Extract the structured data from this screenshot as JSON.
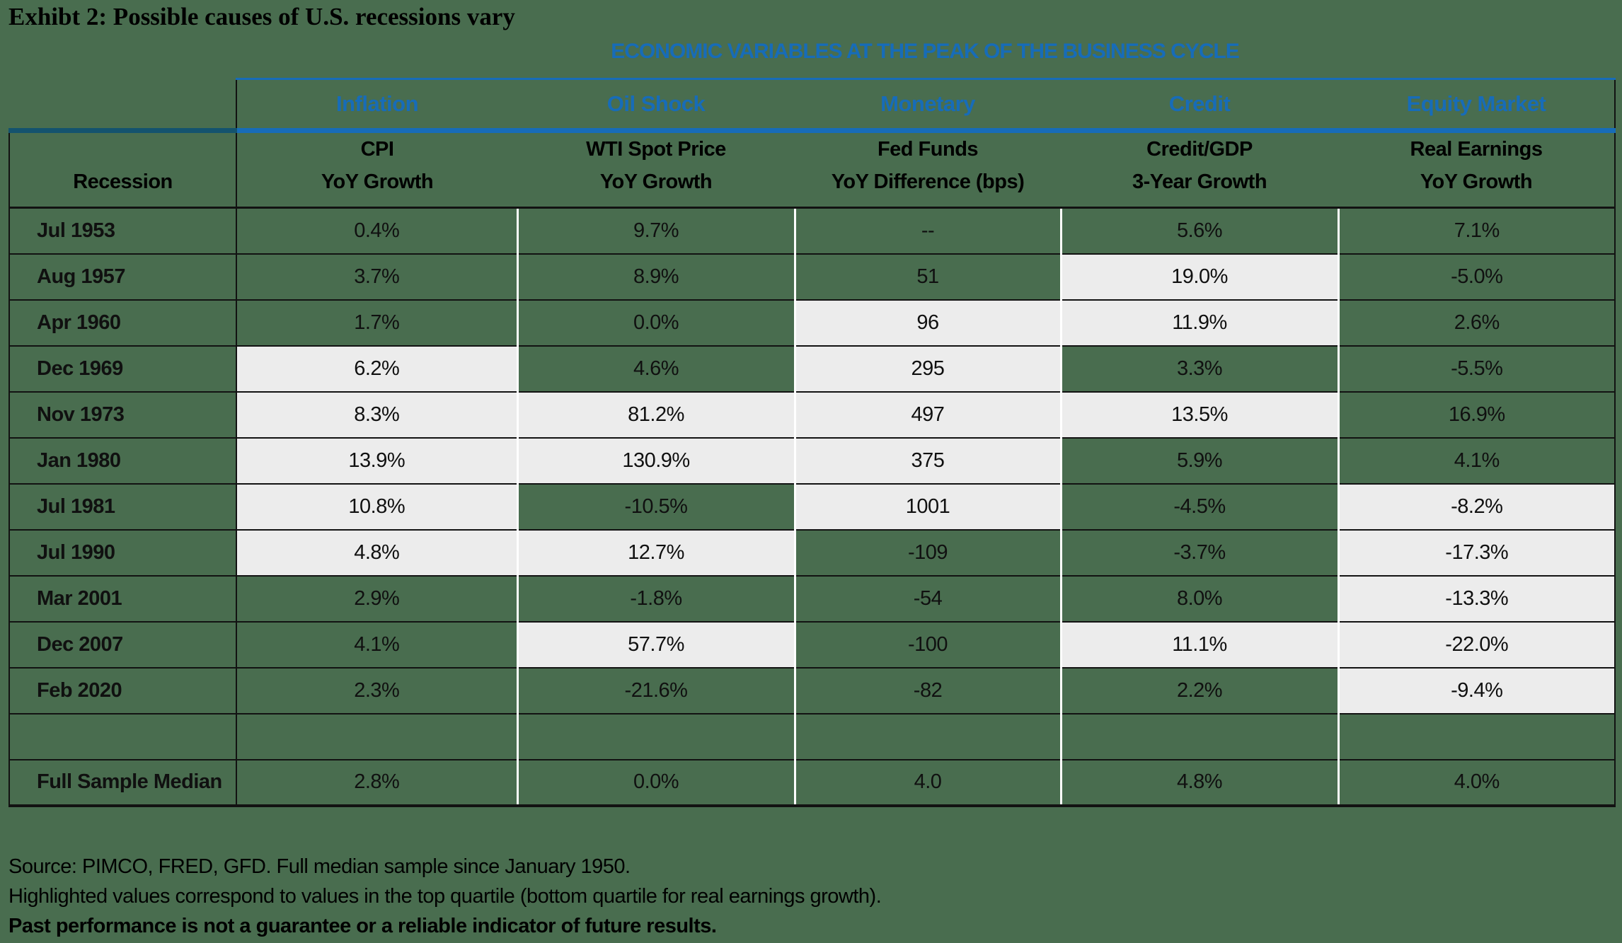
{
  "title": "Exhibt 2: Possible causes of U.S. recessions vary",
  "banner": "ECONOMIC VARIABLES AT THE PEAK OF THE BUSINESS CYCLE",
  "colors": {
    "background_green": "#496D4F",
    "highlight_gray": "#ECECEC",
    "blue": "#176CB8",
    "dark_teal": "#14536E",
    "border_black": "#121212",
    "separator_white": "#FFFFFF"
  },
  "chart_data": {
    "type": "table",
    "title": "ECONOMIC VARIABLES AT THE PEAK OF THE BUSINESS CYCLE",
    "group_headers": [
      "Inflation",
      "Oil Shock",
      "Monetary",
      "Credit",
      "Equity Market"
    ],
    "row_header": "Recession",
    "columns": [
      {
        "line1": "CPI",
        "line2": "YoY Growth"
      },
      {
        "line1": "WTI Spot Price",
        "line2": "YoY Growth"
      },
      {
        "line1": "Fed Funds",
        "line2": "YoY Difference (bps)"
      },
      {
        "line1": "Credit/GDP",
        "line2": "3-Year Growth"
      },
      {
        "line1": "Real Earnings",
        "line2": "YoY Growth"
      }
    ],
    "highlight_note": "Highlighted cells are light gray; normal cells are green",
    "rows": [
      {
        "label": "Jul 1953",
        "values": [
          "0.4%",
          "9.7%",
          "--",
          "5.6%",
          "7.1%"
        ],
        "highlight": [
          false,
          false,
          false,
          false,
          false
        ]
      },
      {
        "label": "Aug 1957",
        "values": [
          "3.7%",
          "8.9%",
          "51",
          "19.0%",
          "-5.0%"
        ],
        "highlight": [
          false,
          false,
          false,
          true,
          false
        ]
      },
      {
        "label": "Apr 1960",
        "values": [
          "1.7%",
          "0.0%",
          "96",
          "11.9%",
          "2.6%"
        ],
        "highlight": [
          false,
          false,
          true,
          true,
          false
        ]
      },
      {
        "label": "Dec 1969",
        "values": [
          "6.2%",
          "4.6%",
          "295",
          "3.3%",
          "-5.5%"
        ],
        "highlight": [
          true,
          false,
          true,
          false,
          false
        ]
      },
      {
        "label": "Nov 1973",
        "values": [
          "8.3%",
          "81.2%",
          "497",
          "13.5%",
          "16.9%"
        ],
        "highlight": [
          true,
          true,
          true,
          true,
          false
        ]
      },
      {
        "label": "Jan 1980",
        "values": [
          "13.9%",
          "130.9%",
          "375",
          "5.9%",
          "4.1%"
        ],
        "highlight": [
          true,
          true,
          true,
          false,
          false
        ]
      },
      {
        "label": "Jul 1981",
        "values": [
          "10.8%",
          "-10.5%",
          "1001",
          "-4.5%",
          "-8.2%"
        ],
        "highlight": [
          true,
          false,
          true,
          false,
          true
        ]
      },
      {
        "label": "Jul 1990",
        "values": [
          "4.8%",
          "12.7%",
          "-109",
          "-3.7%",
          "-17.3%"
        ],
        "highlight": [
          true,
          true,
          false,
          false,
          true
        ]
      },
      {
        "label": "Mar 2001",
        "values": [
          "2.9%",
          "-1.8%",
          "-54",
          "8.0%",
          "-13.3%"
        ],
        "highlight": [
          false,
          false,
          false,
          false,
          true
        ]
      },
      {
        "label": "Dec 2007",
        "values": [
          "4.1%",
          "57.7%",
          "-100",
          "11.1%",
          "-22.0%"
        ],
        "highlight": [
          false,
          true,
          false,
          true,
          true
        ]
      },
      {
        "label": "Feb 2020",
        "values": [
          "2.3%",
          "-21.6%",
          "-82",
          "2.2%",
          "-9.4%"
        ],
        "highlight": [
          false,
          false,
          false,
          false,
          true
        ],
        "spacer_after": true
      },
      {
        "label": "",
        "values": [
          "",
          "",
          "",
          "",
          ""
        ],
        "highlight": [
          false,
          false,
          false,
          false,
          false
        ],
        "spacer": true
      },
      {
        "label": "Full Sample Median",
        "values": [
          "2.8%",
          "0.0%",
          "4.0",
          "4.8%",
          "4.0%"
        ],
        "highlight": [
          false,
          false,
          false,
          false,
          false
        ],
        "median": true
      }
    ]
  },
  "footnotes": {
    "line1": "Source: PIMCO, FRED, GFD. Full median sample since January 1950.",
    "line2": "Highlighted values correspond to values in the top quartile (bottom quartile for real earnings growth).",
    "line3": "Past performance is not a guarantee or a reliable indicator of future results."
  }
}
